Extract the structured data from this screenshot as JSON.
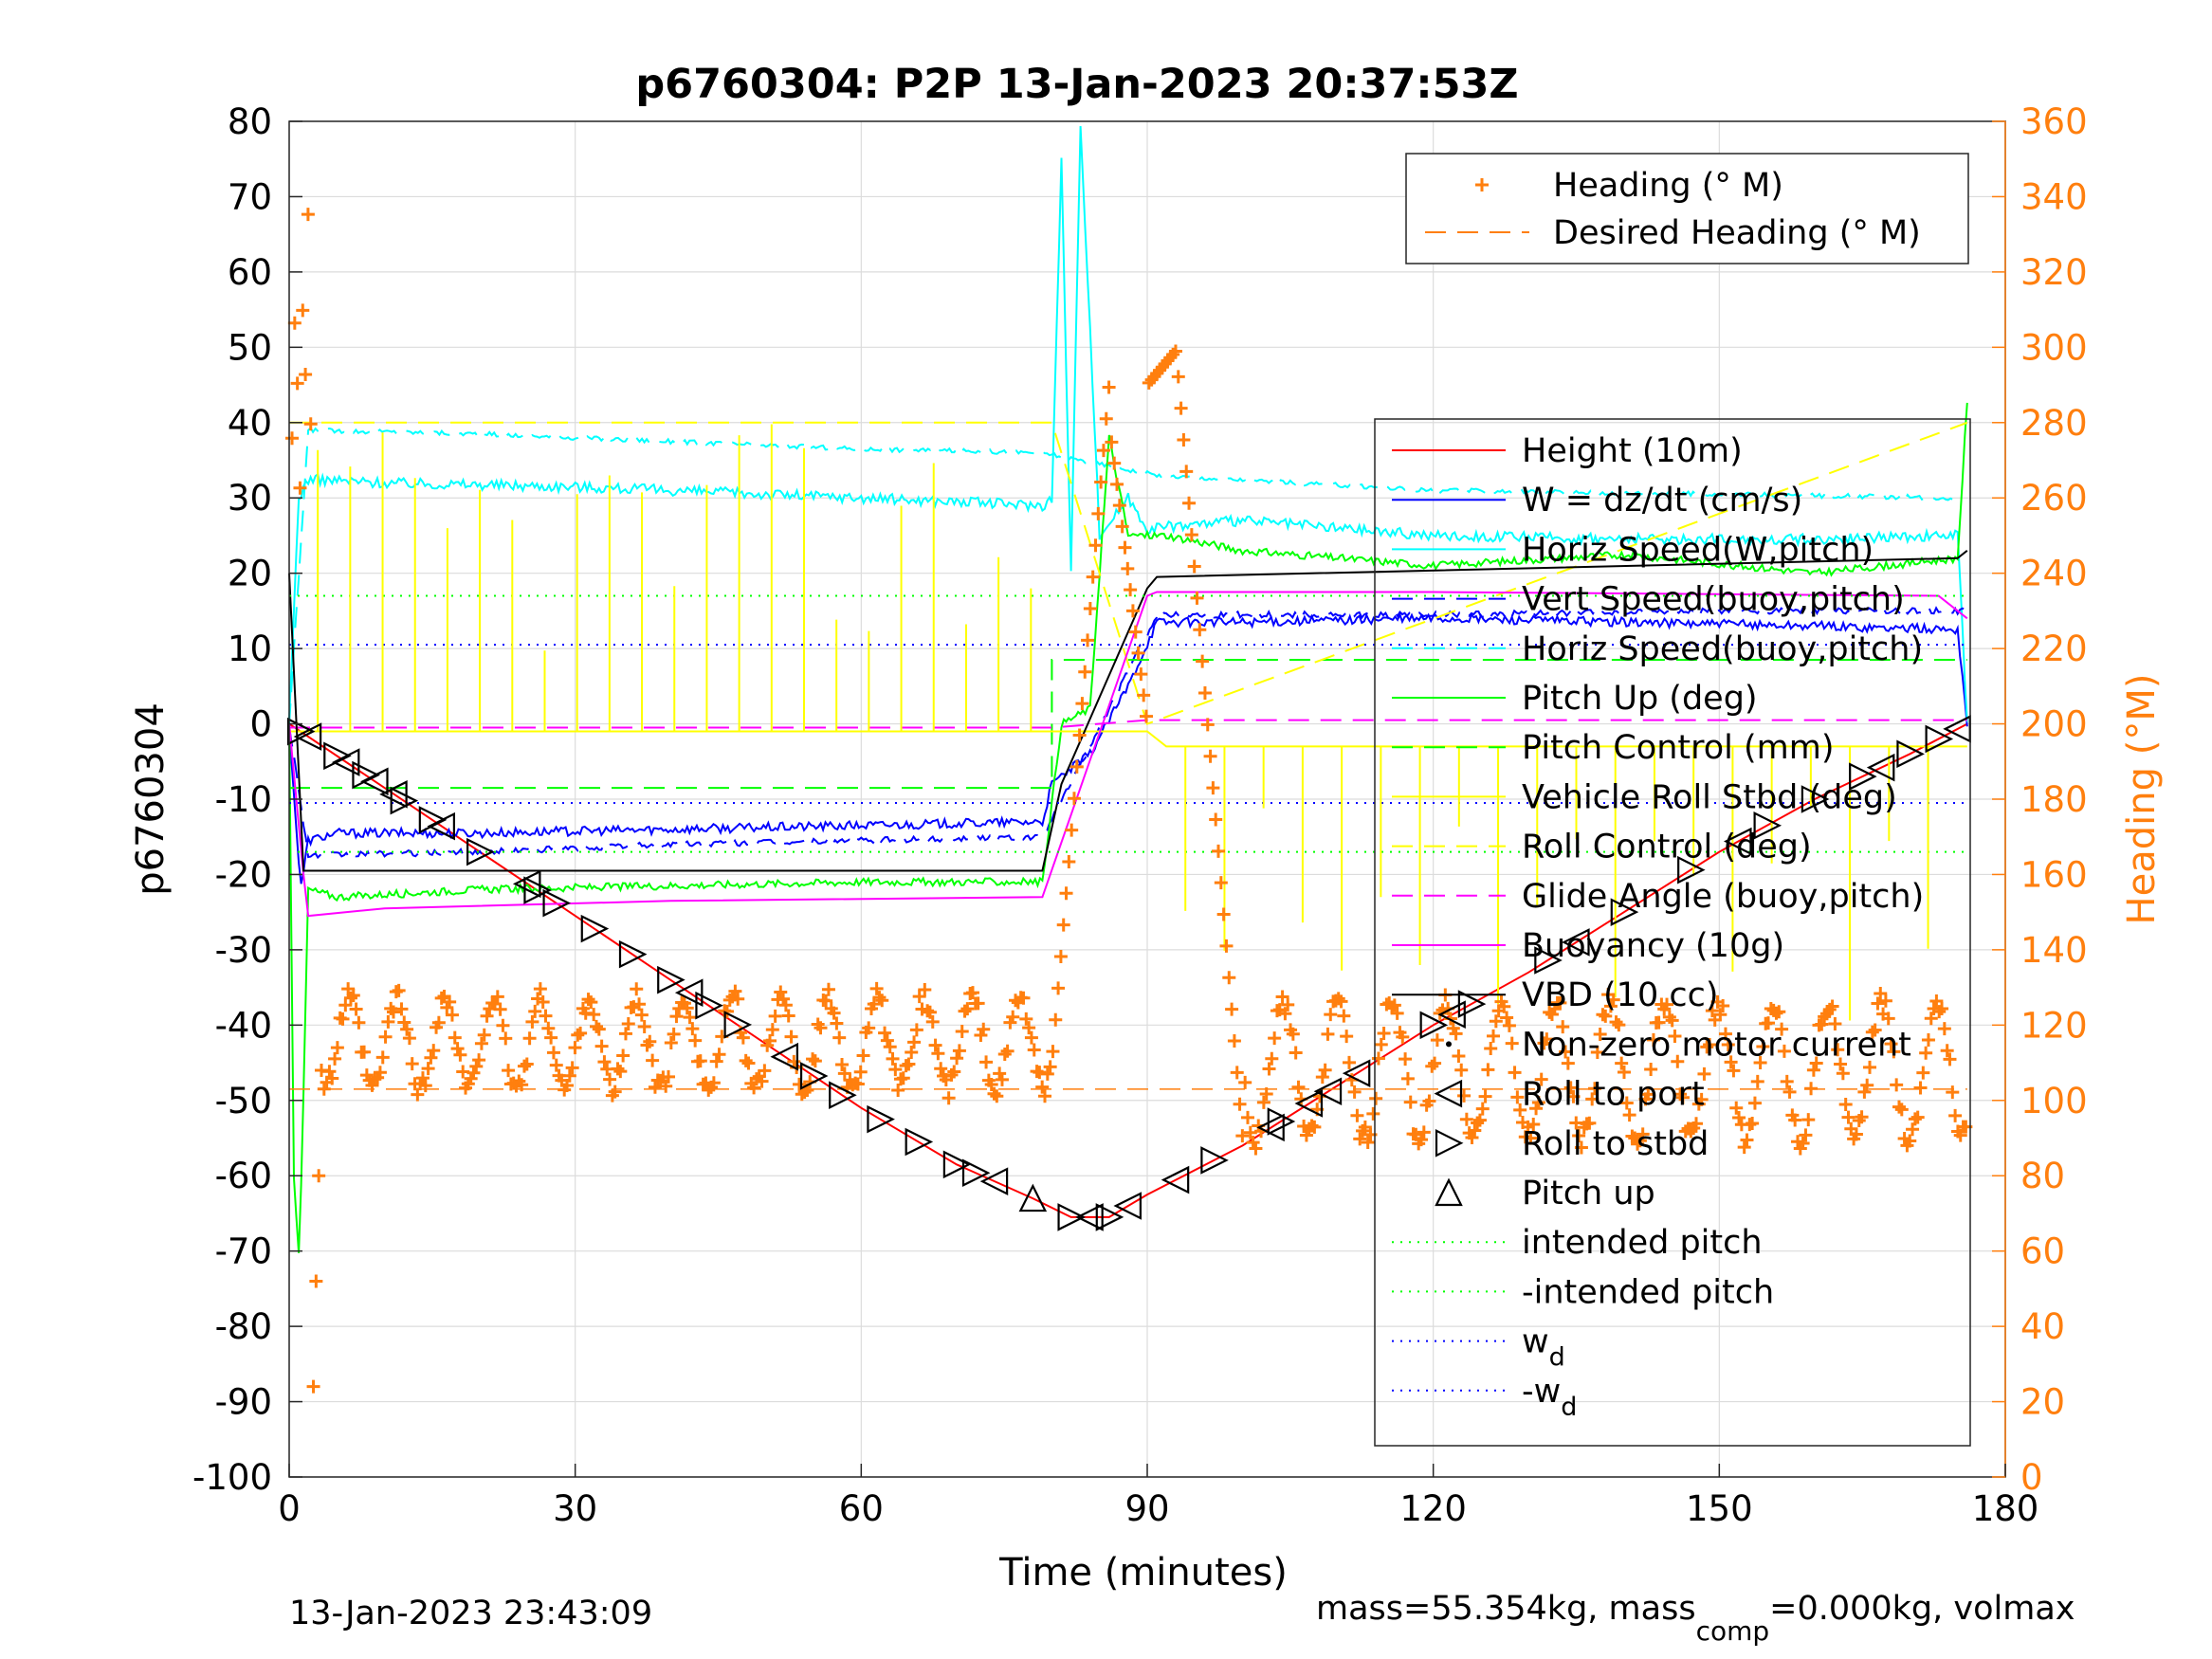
{
  "chart_data": {
    "type": "line",
    "title": "p6760304: P2P 13-Jan-2023 20:37:53Z",
    "xlabel": "Time (minutes)",
    "ylabel": "p6760304",
    "ylabel_right": "Heading (°M)",
    "xlim": [
      0,
      180
    ],
    "ylim": [
      -100,
      80
    ],
    "ylim_right": [
      0,
      360
    ],
    "xticks": [
      "0",
      "30",
      "60",
      "90",
      "120",
      "150",
      "180"
    ],
    "yticks": [
      "-100",
      "-90",
      "-80",
      "-70",
      "-60",
      "-50",
      "-40",
      "-30",
      "-20",
      "-10",
      "0",
      "10",
      "20",
      "30",
      "40",
      "50",
      "60",
      "70",
      "80"
    ],
    "yticks_right": [
      "0",
      "20",
      "40",
      "60",
      "80",
      "100",
      "120",
      "140",
      "160",
      "180",
      "200",
      "220",
      "240",
      "260",
      "280",
      "300",
      "320",
      "340",
      "360"
    ],
    "grid": true,
    "legend_top": [
      {
        "label": "Heading (° M)",
        "color": "#ff7f0e",
        "style": "plus"
      },
      {
        "label": "Desired Heading (° M)",
        "color": "#ff7f0e",
        "style": "dash"
      }
    ],
    "legend_main": [
      {
        "label": "Height (10m)",
        "color": "#ff0000",
        "style": "solid"
      },
      {
        "label": "W = dz/dt (cm/s)",
        "color": "#0000ff",
        "style": "solid"
      },
      {
        "label": "Horiz Speed(W,pitch)",
        "color": "#00ffff",
        "style": "solid"
      },
      {
        "label": "Vert Speed(buoy,pitch)",
        "color": "#0000ff",
        "style": "dash"
      },
      {
        "label": "Horiz Speed(buoy,pitch)",
        "color": "#00ffff",
        "style": "dash"
      },
      {
        "label": "Pitch Up (deg)",
        "color": "#00ff00",
        "style": "solid"
      },
      {
        "label": "Pitch Control (mm)",
        "color": "#00ff00",
        "style": "dash"
      },
      {
        "label": "Vehicle Roll Stbd (deg)",
        "color": "#ffff00",
        "style": "solid"
      },
      {
        "label": "Roll Control (deg)",
        "color": "#ffff00",
        "style": "dash"
      },
      {
        "label": "Glide Angle (buoy,pitch)",
        "color": "#ff00ff",
        "style": "dash"
      },
      {
        "label": "Buoyancy (10g)",
        "color": "#ff00ff",
        "style": "solid"
      },
      {
        "label": "VBD (10 cc)",
        "color": "#000000",
        "style": "solid"
      },
      {
        "label": "Non-zero motor current",
        "color": "#000000",
        "style": "dot"
      },
      {
        "label": "Roll to port",
        "color": "#000000",
        "style": "tri-left"
      },
      {
        "label": "Roll to stbd",
        "color": "#000000",
        "style": "tri-right"
      },
      {
        "label": "Pitch up",
        "color": "#000000",
        "style": "tri-up"
      },
      {
        "label": "intended pitch",
        "color": "#00ff00",
        "style": "dotted"
      },
      {
        "label": "-intended pitch",
        "color": "#00ff00",
        "style": "dotted"
      },
      {
        "label": "w",
        "sub": "d",
        "color": "#0000ff",
        "style": "dotted"
      },
      {
        "label": "-w",
        "sub": "d",
        "color": "#0000ff",
        "style": "dotted"
      }
    ],
    "series": [
      {
        "name": "Height (10m)",
        "color": "#ff0000",
        "x": [
          0,
          10,
          20,
          30,
          40,
          50,
          60,
          70,
          78,
          82,
          86,
          90,
          100,
          110,
          120,
          130,
          140,
          150,
          160,
          170,
          176
        ],
        "y": [
          0,
          -8.5,
          -17,
          -25.5,
          -34,
          -42.5,
          -51,
          -58.5,
          -63,
          -65.5,
          -65.5,
          -62.5,
          -56,
          -48,
          -40,
          -33,
          -25,
          -17,
          -10,
          -4,
          0
        ]
      },
      {
        "name": "W = dz/dt (cm/s)",
        "color": "#0000ff",
        "x": [
          0,
          1.2,
          2,
          5,
          20,
          40,
          60,
          79,
          80,
          84,
          88,
          91,
          100,
          120,
          140,
          160,
          175,
          176
        ],
        "y": [
          0,
          -22,
          -15.5,
          -14.5,
          -14.5,
          -14,
          -13.5,
          -13,
          -8,
          -4,
          5,
          13.5,
          13.5,
          14,
          13.5,
          13,
          12.5,
          0
        ]
      },
      {
        "name": "Horiz Speed(W,pitch)",
        "color": "#00ffff",
        "x": [
          0,
          1,
          2,
          10,
          30,
          50,
          70,
          79,
          80,
          81,
          82,
          83,
          85,
          88,
          90,
          100,
          120,
          140,
          160,
          175,
          176
        ],
        "y": [
          0,
          30,
          32.5,
          32,
          31.5,
          30.5,
          29.5,
          29,
          30,
          75,
          20,
          80,
          25,
          30,
          26,
          27,
          25,
          24.5,
          24.5,
          25,
          0
        ]
      },
      {
        "name": "Vert Speed(buoy,pitch)",
        "color": "#0000ff",
        "x": [
          0,
          2,
          20,
          40,
          60,
          79,
          84,
          91,
          120,
          150,
          176
        ],
        "y": [
          0,
          -17.5,
          -17,
          -16,
          -15.5,
          -15,
          -3,
          14.5,
          14.5,
          15,
          15
        ]
      },
      {
        "name": "Horiz Speed(buoy,pitch)",
        "color": "#00ffff",
        "x": [
          0,
          2,
          20,
          40,
          60,
          79,
          91,
          120,
          150,
          175
        ],
        "y": [
          0,
          39,
          38.5,
          37.5,
          36.5,
          36,
          33,
          31,
          30.5,
          30
        ]
      },
      {
        "name": "Pitch Up (deg)",
        "color": "#00ff00",
        "x": [
          0,
          0.5,
          1,
          1.3,
          2,
          5,
          20,
          40,
          60,
          79,
          81,
          84,
          86,
          88,
          92,
          100,
          120,
          140,
          160,
          175,
          176
        ],
        "y": [
          0,
          -60,
          -70,
          -60,
          -22,
          -23,
          -22,
          -21.5,
          -21,
          -21,
          0,
          2,
          38,
          25,
          25,
          23,
          21,
          22.5,
          20,
          22,
          43
        ]
      },
      {
        "name": "Pitch Control (mm)",
        "color": "#00ff00",
        "x": [
          0,
          80,
          80,
          176
        ],
        "y": [
          -8.5,
          -8.5,
          8.5,
          8.5
        ]
      },
      {
        "name": "Vehicle Roll Stbd (deg)",
        "color": "#ffff00",
        "x": [
          0,
          80,
          90,
          92,
          176
        ],
        "y": [
          -1,
          -1,
          -1,
          -3,
          -3
        ]
      },
      {
        "name": "Roll Control (deg)",
        "color": "#ffff00",
        "x": [
          0,
          80,
          90,
          176
        ],
        "y": [
          40,
          40,
          0,
          40
        ]
      },
      {
        "name": "Glide Angle (buoy,pitch)",
        "color": "#ff00ff",
        "x": [
          0,
          80,
          90,
          176
        ],
        "y": [
          -0.5,
          -0.5,
          0.5,
          0.5
        ]
      },
      {
        "name": "Buoyancy (10g)",
        "color": "#ff00ff",
        "x": [
          0,
          1.5,
          2,
          10,
          40,
          79,
          90,
          91,
          120,
          173,
          176
        ],
        "y": [
          0,
          -20,
          -25.5,
          -24.5,
          -23.5,
          -23,
          17,
          17.5,
          17.5,
          17,
          14
        ]
      },
      {
        "name": "VBD (10 cc)",
        "color": "#000000",
        "x": [
          0,
          1.5,
          79,
          81,
          90,
          91,
          175,
          176
        ],
        "y": [
          20,
          -19.5,
          -19.5,
          -8,
          18,
          19.5,
          22,
          23
        ]
      },
      {
        "name": "intended pitch",
        "color": "#00ff00",
        "x": [
          0,
          176
        ],
        "y": [
          17,
          17
        ]
      },
      {
        "name": "-intended pitch",
        "color": "#00ff00",
        "x": [
          0,
          176
        ],
        "y": [
          -17,
          -17
        ]
      },
      {
        "name": "w_d",
        "color": "#0000ff",
        "x": [
          0,
          176
        ],
        "y": [
          10.5,
          10.5
        ]
      },
      {
        "name": "-w_d",
        "color": "#0000ff",
        "x": [
          0,
          176
        ],
        "y": [
          -10.5,
          -10.5
        ]
      }
    ],
    "heading": {
      "name": "Heading (° M)",
      "color": "#ff7f0e",
      "desired": 103
    },
    "markers_roll_port_x": [
      2,
      6,
      9,
      11,
      16,
      25,
      42,
      52,
      74,
      84,
      88,
      93,
      103,
      107,
      109,
      112,
      122,
      135,
      152,
      167,
      175
    ],
    "markers_roll_stbd_x": [
      1.2,
      5,
      8,
      12,
      15,
      20,
      26,
      28,
      32,
      36,
      40,
      44,
      47,
      55,
      58,
      62,
      66,
      70,
      72,
      82,
      86,
      97,
      104,
      120,
      124,
      132,
      140,
      147,
      155,
      160,
      165,
      170,
      173
    ],
    "markers_pitch_up_x": [
      78
    ]
  },
  "footer": {
    "left": "13-Jan-2023 23:43:09",
    "right_pre": "mass=55.354kg, mass",
    "right_sub": "comp",
    "right_post": "=0.000kg, volmax"
  }
}
